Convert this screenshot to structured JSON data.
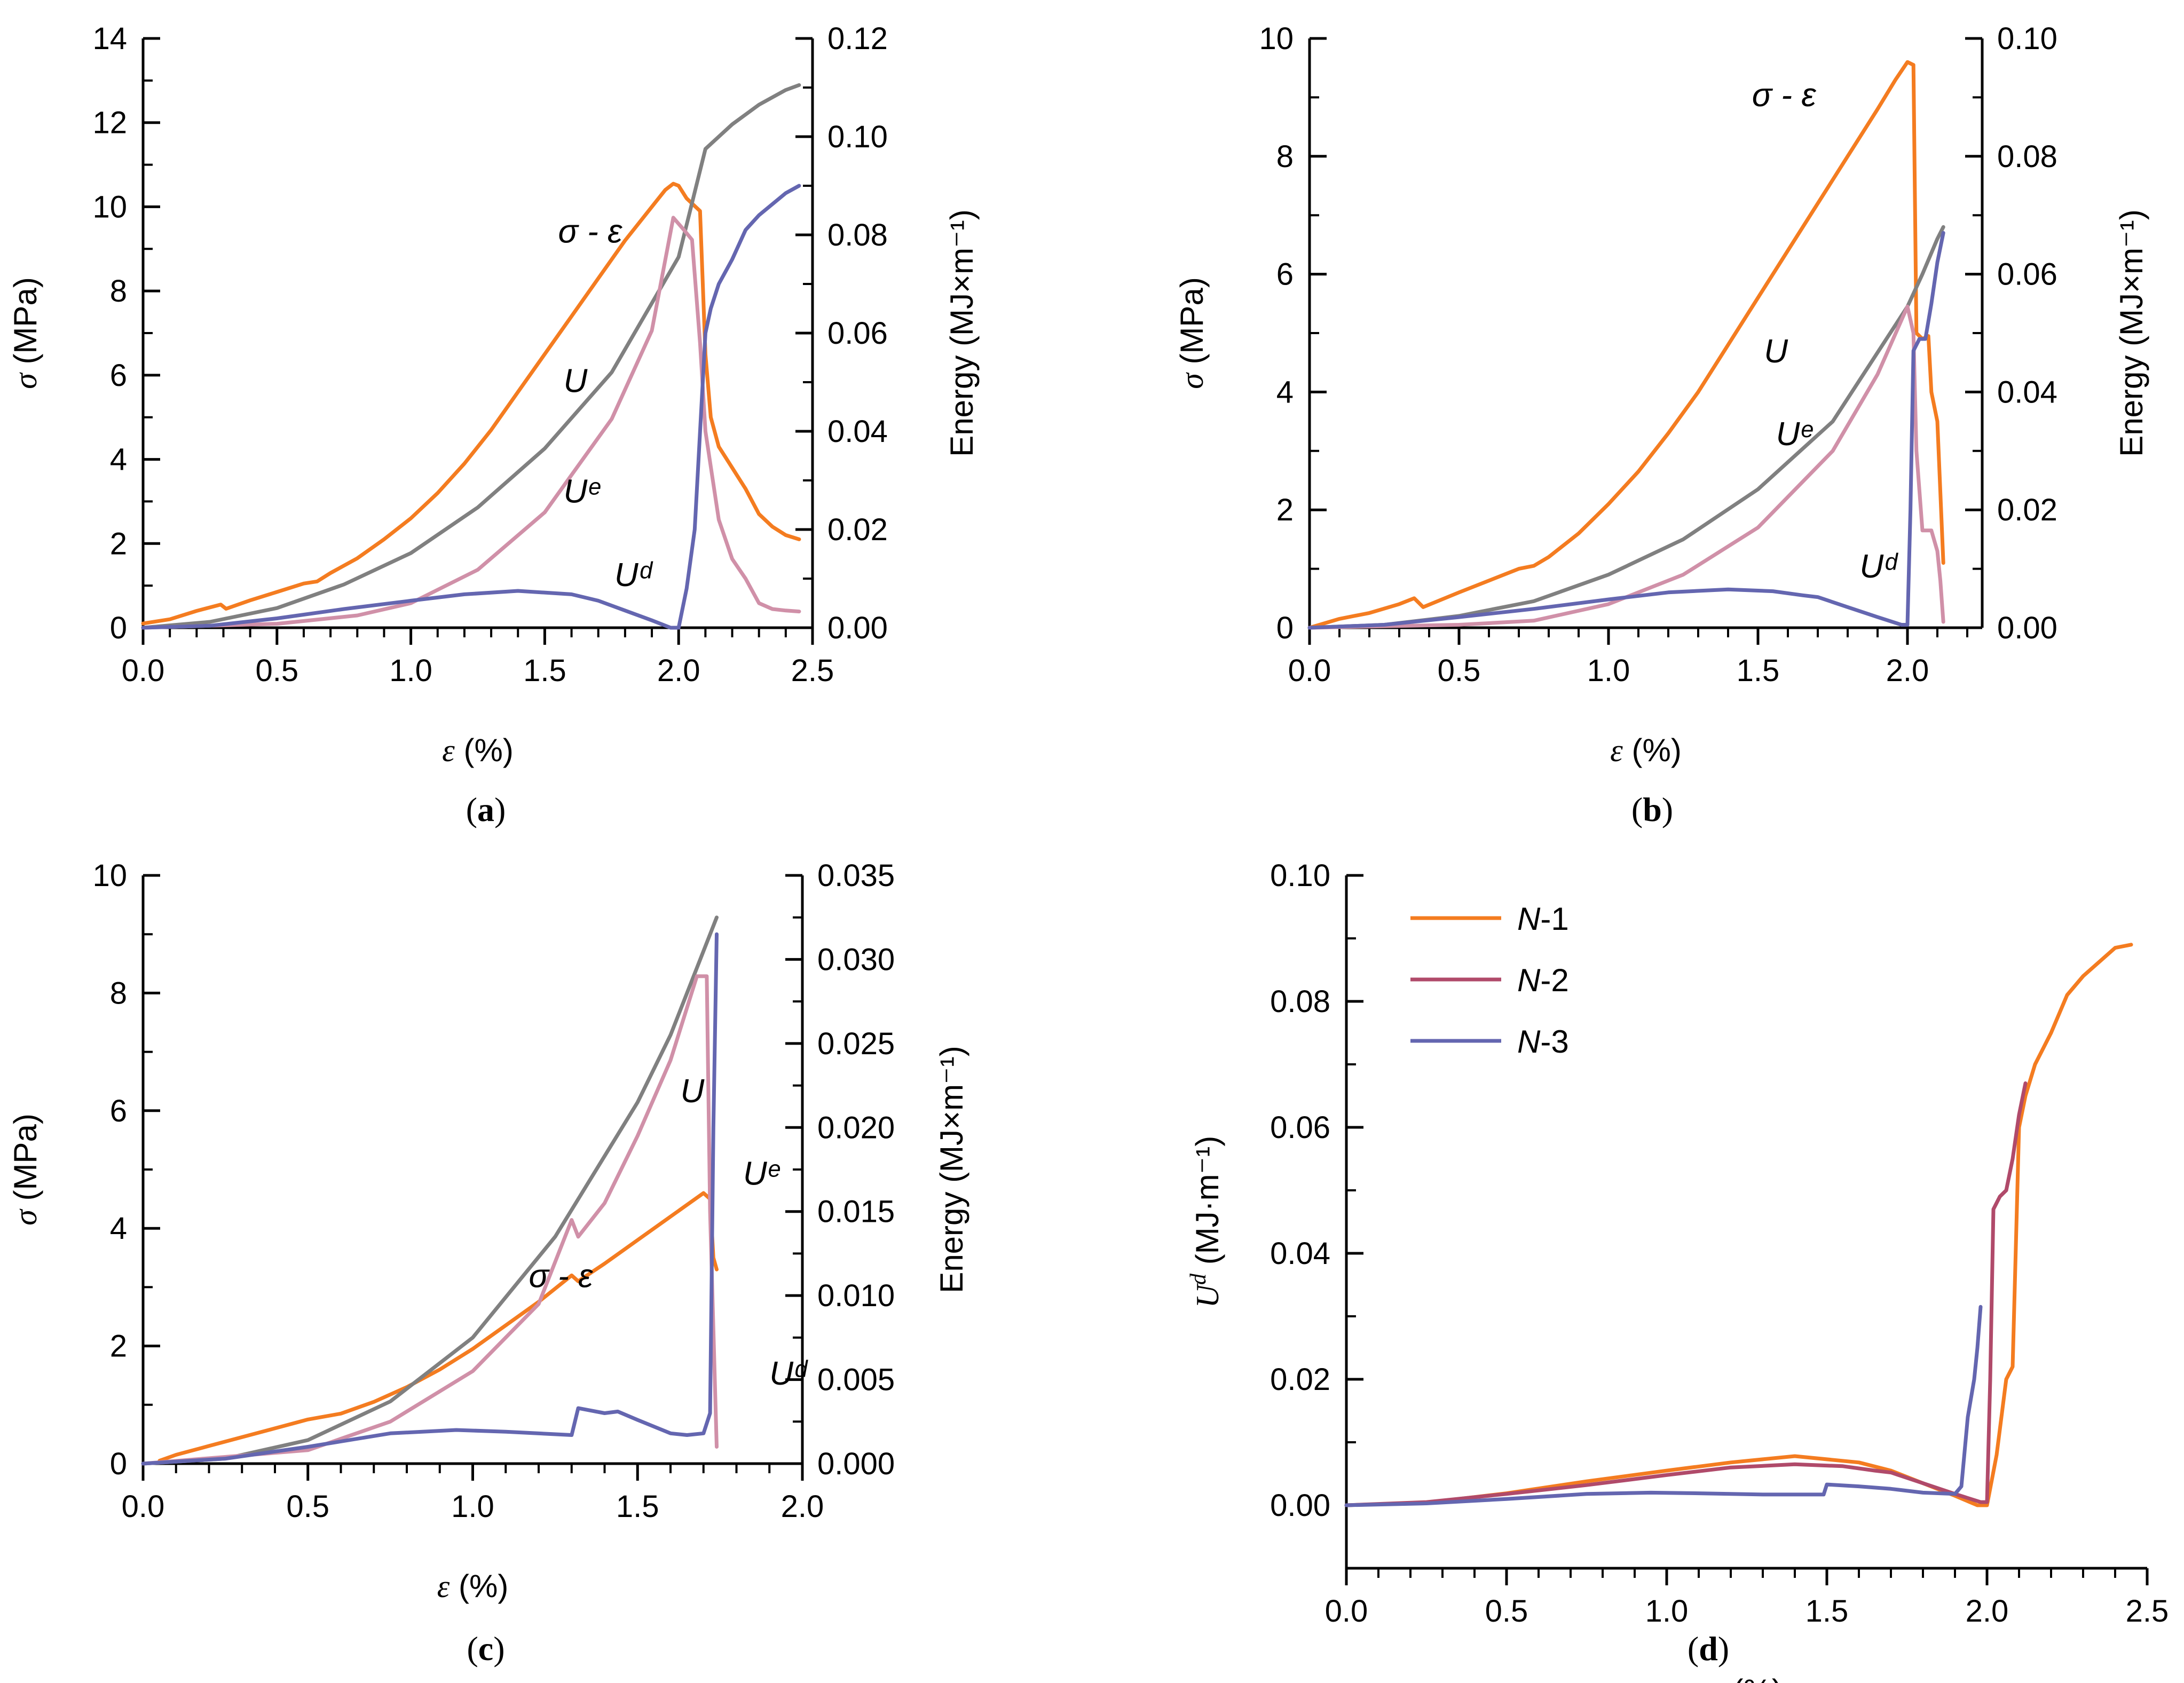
{
  "chart_data": [
    {
      "type": "line",
      "panel": "a",
      "caption": "a",
      "xlabel": {
        "symbol": "ε",
        "unit": "(%)"
      },
      "ylabel": {
        "symbol": "σ",
        "unit": "(MPa)"
      },
      "y2label": "Energy (MJ×m⁻¹)",
      "xlim": [
        0,
        2.5
      ],
      "ylim": [
        0,
        14
      ],
      "y2lim": [
        0,
        0.12
      ],
      "xticks": [
        "0.0",
        "0.5",
        "1.0",
        "1.5",
        "2.0",
        "2.5"
      ],
      "yticks": [
        "0",
        "2",
        "4",
        "6",
        "8",
        "10",
        "12",
        "14"
      ],
      "y2ticks": [
        "0.00",
        "0.02",
        "0.04",
        "0.06",
        "0.08",
        "0.10",
        "0.12"
      ],
      "labels": {
        "stress": "σ - ε",
        "total": "U",
        "elastic": "Uᵉ",
        "dissipated": "Uᵈ"
      },
      "series": [
        {
          "name": "σ - ε",
          "axis": "left",
          "color": "#f47c20",
          "x": [
            0,
            0.1,
            0.2,
            0.29,
            0.31,
            0.4,
            0.5,
            0.6,
            0.65,
            0.7,
            0.8,
            0.9,
            1.0,
            1.1,
            1.2,
            1.3,
            1.4,
            1.5,
            1.6,
            1.7,
            1.8,
            1.9,
            1.95,
            1.98,
            2.0,
            2.03,
            2.08,
            2.1,
            2.12,
            2.15,
            2.2,
            2.25,
            2.3,
            2.35,
            2.4,
            2.45
          ],
          "y": [
            0.1,
            0.2,
            0.4,
            0.55,
            0.45,
            0.65,
            0.85,
            1.05,
            1.1,
            1.3,
            1.65,
            2.1,
            2.6,
            3.2,
            3.9,
            4.7,
            5.6,
            6.5,
            7.4,
            8.3,
            9.2,
            10.0,
            10.4,
            10.55,
            10.5,
            10.2,
            9.9,
            6.5,
            5.0,
            4.3,
            3.8,
            3.3,
            2.7,
            2.4,
            2.2,
            2.1
          ]
        },
        {
          "name": "U",
          "axis": "right",
          "color": "#808080",
          "x": [
            0,
            0.25,
            0.5,
            0.75,
            1.0,
            1.25,
            1.5,
            1.75,
            2.0,
            2.1,
            2.2,
            2.3,
            2.4,
            2.45
          ],
          "y": [
            0,
            0.0012,
            0.004,
            0.0088,
            0.0152,
            0.0245,
            0.0365,
            0.052,
            0.0755,
            0.0975,
            0.1025,
            0.1065,
            0.1095,
            0.1105
          ]
        },
        {
          "name": "Uᵉ",
          "axis": "right",
          "color": "#d090a8",
          "x": [
            0,
            0.5,
            0.8,
            1.0,
            1.25,
            1.5,
            1.75,
            1.9,
            1.98,
            2.02,
            2.05,
            2.08,
            2.1,
            2.15,
            2.2,
            2.25,
            2.3,
            2.35,
            2.4,
            2.45
          ],
          "y": [
            0,
            0.0008,
            0.0025,
            0.005,
            0.0118,
            0.0235,
            0.0425,
            0.0605,
            0.0835,
            0.081,
            0.079,
            0.058,
            0.04,
            0.022,
            0.014,
            0.01,
            0.005,
            0.0038,
            0.0035,
            0.0033
          ]
        },
        {
          "name": "Uᵈ",
          "axis": "right",
          "color": "#6466b0",
          "x": [
            0,
            0.25,
            0.5,
            0.75,
            1.0,
            1.2,
            1.4,
            1.6,
            1.7,
            1.8,
            1.9,
            1.97,
            2.0,
            2.03,
            2.06,
            2.1,
            2.12,
            2.15,
            2.2,
            2.25,
            2.3,
            2.4,
            2.45
          ],
          "y": [
            0,
            0.0004,
            0.0019,
            0.0038,
            0.0055,
            0.0068,
            0.0075,
            0.0068,
            0.0055,
            0.0035,
            0.0015,
            0,
            0,
            0.008,
            0.02,
            0.06,
            0.065,
            0.07,
            0.075,
            0.081,
            0.084,
            0.0885,
            0.09
          ]
        }
      ]
    },
    {
      "type": "line",
      "panel": "b",
      "caption": "b",
      "xlabel": {
        "symbol": "ε",
        "unit": "(%)"
      },
      "ylabel": {
        "symbol": "σ",
        "unit": "(MPa)"
      },
      "y2label": "Energy (MJ×m⁻¹)",
      "xlim": [
        0,
        2.25
      ],
      "ylim": [
        0,
        10
      ],
      "y2lim": [
        0,
        0.1
      ],
      "xticks": [
        "0.0",
        "0.5",
        "1.0",
        "1.5",
        "2.0"
      ],
      "yticks": [
        "0",
        "2",
        "4",
        "6",
        "8",
        "10"
      ],
      "y2ticks": [
        "0.00",
        "0.02",
        "0.04",
        "0.06",
        "0.08",
        "0.10"
      ],
      "labels": {
        "stress": "σ - ε",
        "total": "U",
        "elastic": "Uᵉ",
        "dissipated": "Uᵈ"
      },
      "series": [
        {
          "name": "σ - ε",
          "axis": "left",
          "color": "#f47c20",
          "x": [
            0,
            0.1,
            0.2,
            0.3,
            0.35,
            0.38,
            0.5,
            0.6,
            0.7,
            0.75,
            0.8,
            0.9,
            1.0,
            1.1,
            1.2,
            1.3,
            1.4,
            1.5,
            1.6,
            1.7,
            1.8,
            1.9,
            1.96,
            2.0,
            2.02,
            2.03,
            2.05,
            2.07,
            2.08,
            2.1,
            2.12
          ],
          "y": [
            0,
            0.15,
            0.25,
            0.4,
            0.5,
            0.35,
            0.6,
            0.8,
            1.0,
            1.05,
            1.2,
            1.6,
            2.1,
            2.65,
            3.3,
            4.0,
            4.8,
            5.6,
            6.4,
            7.2,
            8.0,
            8.8,
            9.3,
            9.6,
            9.55,
            5.0,
            4.9,
            4.95,
            4.0,
            3.5,
            1.1
          ]
        },
        {
          "name": "U",
          "axis": "right",
          "color": "#808080",
          "x": [
            0,
            0.25,
            0.5,
            0.75,
            1.0,
            1.25,
            1.5,
            1.75,
            2.0,
            2.05,
            2.1,
            2.12
          ],
          "y": [
            0,
            0.0005,
            0.002,
            0.0045,
            0.009,
            0.015,
            0.0235,
            0.035,
            0.0545,
            0.06,
            0.066,
            0.068
          ]
        },
        {
          "name": "Uᵉ",
          "axis": "right",
          "color": "#d090a8",
          "x": [
            0,
            0.5,
            0.75,
            1.0,
            1.25,
            1.5,
            1.75,
            1.9,
            2.0,
            2.02,
            2.03,
            2.05,
            2.08,
            2.1,
            2.11,
            2.12
          ],
          "y": [
            0,
            0.0005,
            0.0012,
            0.004,
            0.009,
            0.017,
            0.03,
            0.043,
            0.0545,
            0.05,
            0.03,
            0.0165,
            0.0165,
            0.013,
            0.008,
            0.001
          ]
        },
        {
          "name": "Uᵈ",
          "axis": "right",
          "color": "#6466b0",
          "x": [
            0,
            0.25,
            0.5,
            0.75,
            1.0,
            1.2,
            1.4,
            1.55,
            1.65,
            1.7,
            1.8,
            1.9,
            1.98,
            2.0,
            2.01,
            2.02,
            2.04,
            2.06,
            2.08,
            2.1,
            2.12
          ],
          "y": [
            0,
            0.0005,
            0.0018,
            0.0032,
            0.0048,
            0.006,
            0.0065,
            0.0062,
            0.0055,
            0.0052,
            0.0035,
            0.0018,
            0.0005,
            0.0005,
            0.02,
            0.047,
            0.049,
            0.049,
            0.055,
            0.062,
            0.067
          ]
        }
      ]
    },
    {
      "type": "line",
      "panel": "c",
      "caption": "c",
      "xlabel": {
        "symbol": "ε",
        "unit": "(%)"
      },
      "ylabel": {
        "symbol": "σ",
        "unit": "(MPa)"
      },
      "y2label": "Energy (MJ×m⁻¹)",
      "xlim": [
        0,
        2.0
      ],
      "ylim": [
        0,
        10
      ],
      "y2lim": [
        0,
        0.035
      ],
      "xticks": [
        "0.0",
        "0.5",
        "1.0",
        "1.5",
        "2.0"
      ],
      "yticks": [
        "0",
        "2",
        "4",
        "6",
        "8",
        "10"
      ],
      "y2ticks": [
        "0.000",
        "0.005",
        "0.010",
        "0.015",
        "0.020",
        "0.025",
        "0.030",
        "0.035"
      ],
      "labels": {
        "stress": "σ - ε",
        "total": "U",
        "elastic": "Uᵉ",
        "dissipated": "Uᵈ"
      },
      "series": [
        {
          "name": "σ - ε",
          "axis": "left",
          "color": "#f47c20",
          "x": [
            0.05,
            0.1,
            0.2,
            0.3,
            0.4,
            0.5,
            0.55,
            0.6,
            0.7,
            0.8,
            0.9,
            1.0,
            1.1,
            1.2,
            1.3,
            1.32,
            1.4,
            1.5,
            1.6,
            1.7,
            1.72,
            1.73,
            1.74
          ],
          "y": [
            0.05,
            0.15,
            0.3,
            0.45,
            0.6,
            0.75,
            0.8,
            0.85,
            1.05,
            1.3,
            1.6,
            1.95,
            2.35,
            2.75,
            3.2,
            3.1,
            3.4,
            3.8,
            4.2,
            4.6,
            4.5,
            3.5,
            3.3
          ]
        },
        {
          "name": "U",
          "axis": "right",
          "color": "#808080",
          "x": [
            0,
            0.25,
            0.5,
            0.75,
            1.0,
            1.25,
            1.5,
            1.6,
            1.7,
            1.74
          ],
          "y": [
            0,
            0.0003,
            0.0014,
            0.0037,
            0.0075,
            0.0135,
            0.0215,
            0.0255,
            0.0305,
            0.0325
          ]
        },
        {
          "name": "Uᵉ",
          "axis": "right",
          "color": "#d090a8",
          "x": [
            0,
            0.5,
            0.75,
            1.0,
            1.2,
            1.3,
            1.32,
            1.4,
            1.5,
            1.6,
            1.68,
            1.71,
            1.72,
            1.74
          ],
          "y": [
            0,
            0.0008,
            0.0025,
            0.0055,
            0.0095,
            0.0145,
            0.0135,
            0.0155,
            0.0195,
            0.024,
            0.029,
            0.029,
            0.015,
            0.001
          ]
        },
        {
          "name": "Uᵈ",
          "axis": "right",
          "color": "#6466b0",
          "x": [
            0,
            0.25,
            0.5,
            0.75,
            0.95,
            1.1,
            1.3,
            1.32,
            1.4,
            1.44,
            1.5,
            1.6,
            1.65,
            1.7,
            1.72,
            1.73,
            1.74
          ],
          "y": [
            0,
            0.0003,
            0.001,
            0.0018,
            0.002,
            0.0019,
            0.0017,
            0.0033,
            0.003,
            0.0031,
            0.0026,
            0.0018,
            0.0017,
            0.0018,
            0.003,
            0.02,
            0.0315
          ]
        }
      ]
    },
    {
      "type": "line",
      "panel": "d",
      "caption": "d",
      "xlabel": {
        "symbol": "ε",
        "unit": "(%)"
      },
      "ylabel": {
        "symbol": "U",
        "sup": "d",
        "unit": "(MJ·m⁻¹)"
      },
      "xlim": [
        0,
        2.5
      ],
      "ylim": [
        -0.01,
        0.1
      ],
      "xticks": [
        "0.0",
        "0.5",
        "1.0",
        "1.5",
        "2.0",
        "2.5"
      ],
      "yticks": [
        "0.00",
        "0.02",
        "0.04",
        "0.06",
        "0.08",
        "0.10"
      ],
      "legend": {
        "position": "top-left",
        "entries": [
          {
            "prefix": "N",
            "suffix": "-1",
            "color": "#f47c20"
          },
          {
            "prefix": "N",
            "suffix": "-2",
            "color": "#b04a6a"
          },
          {
            "prefix": "N",
            "suffix": "-3",
            "color": "#6466b0"
          }
        ]
      },
      "series": [
        {
          "name": "N-1",
          "color": "#f47c20",
          "x": [
            0,
            0.25,
            0.5,
            0.75,
            1.0,
            1.2,
            1.4,
            1.6,
            1.7,
            1.8,
            1.9,
            1.97,
            2.0,
            2.03,
            2.06,
            2.08,
            2.1,
            2.12,
            2.15,
            2.2,
            2.25,
            2.3,
            2.4,
            2.45
          ],
          "y": [
            0,
            0.0004,
            0.0019,
            0.0038,
            0.0055,
            0.0068,
            0.0078,
            0.0068,
            0.0055,
            0.0035,
            0.0015,
            0,
            0,
            0.008,
            0.02,
            0.022,
            0.06,
            0.065,
            0.07,
            0.075,
            0.081,
            0.084,
            0.0885,
            0.089
          ]
        },
        {
          "name": "N-2",
          "color": "#b04a6a",
          "x": [
            0,
            0.25,
            0.5,
            0.75,
            1.0,
            1.2,
            1.4,
            1.55,
            1.65,
            1.7,
            1.8,
            1.9,
            1.98,
            2.0,
            2.01,
            2.02,
            2.04,
            2.06,
            2.08,
            2.1,
            2.12
          ],
          "y": [
            0,
            0.0005,
            0.0018,
            0.0032,
            0.0048,
            0.006,
            0.0065,
            0.0062,
            0.0055,
            0.0052,
            0.0035,
            0.0018,
            0.0005,
            0.0005,
            0.02,
            0.047,
            0.049,
            0.05,
            0.055,
            0.062,
            0.067
          ]
        },
        {
          "name": "N-3",
          "color": "#6466b0",
          "x": [
            0,
            0.25,
            0.5,
            0.75,
            0.95,
            1.1,
            1.3,
            1.49,
            1.5,
            1.6,
            1.7,
            1.8,
            1.9,
            1.92,
            1.94,
            1.96,
            1.97,
            1.98
          ],
          "y": [
            0,
            0.0003,
            0.001,
            0.0018,
            0.002,
            0.0019,
            0.0017,
            0.0017,
            0.0033,
            0.003,
            0.0026,
            0.002,
            0.0018,
            0.003,
            0.014,
            0.02,
            0.025,
            0.0315
          ]
        }
      ]
    }
  ]
}
